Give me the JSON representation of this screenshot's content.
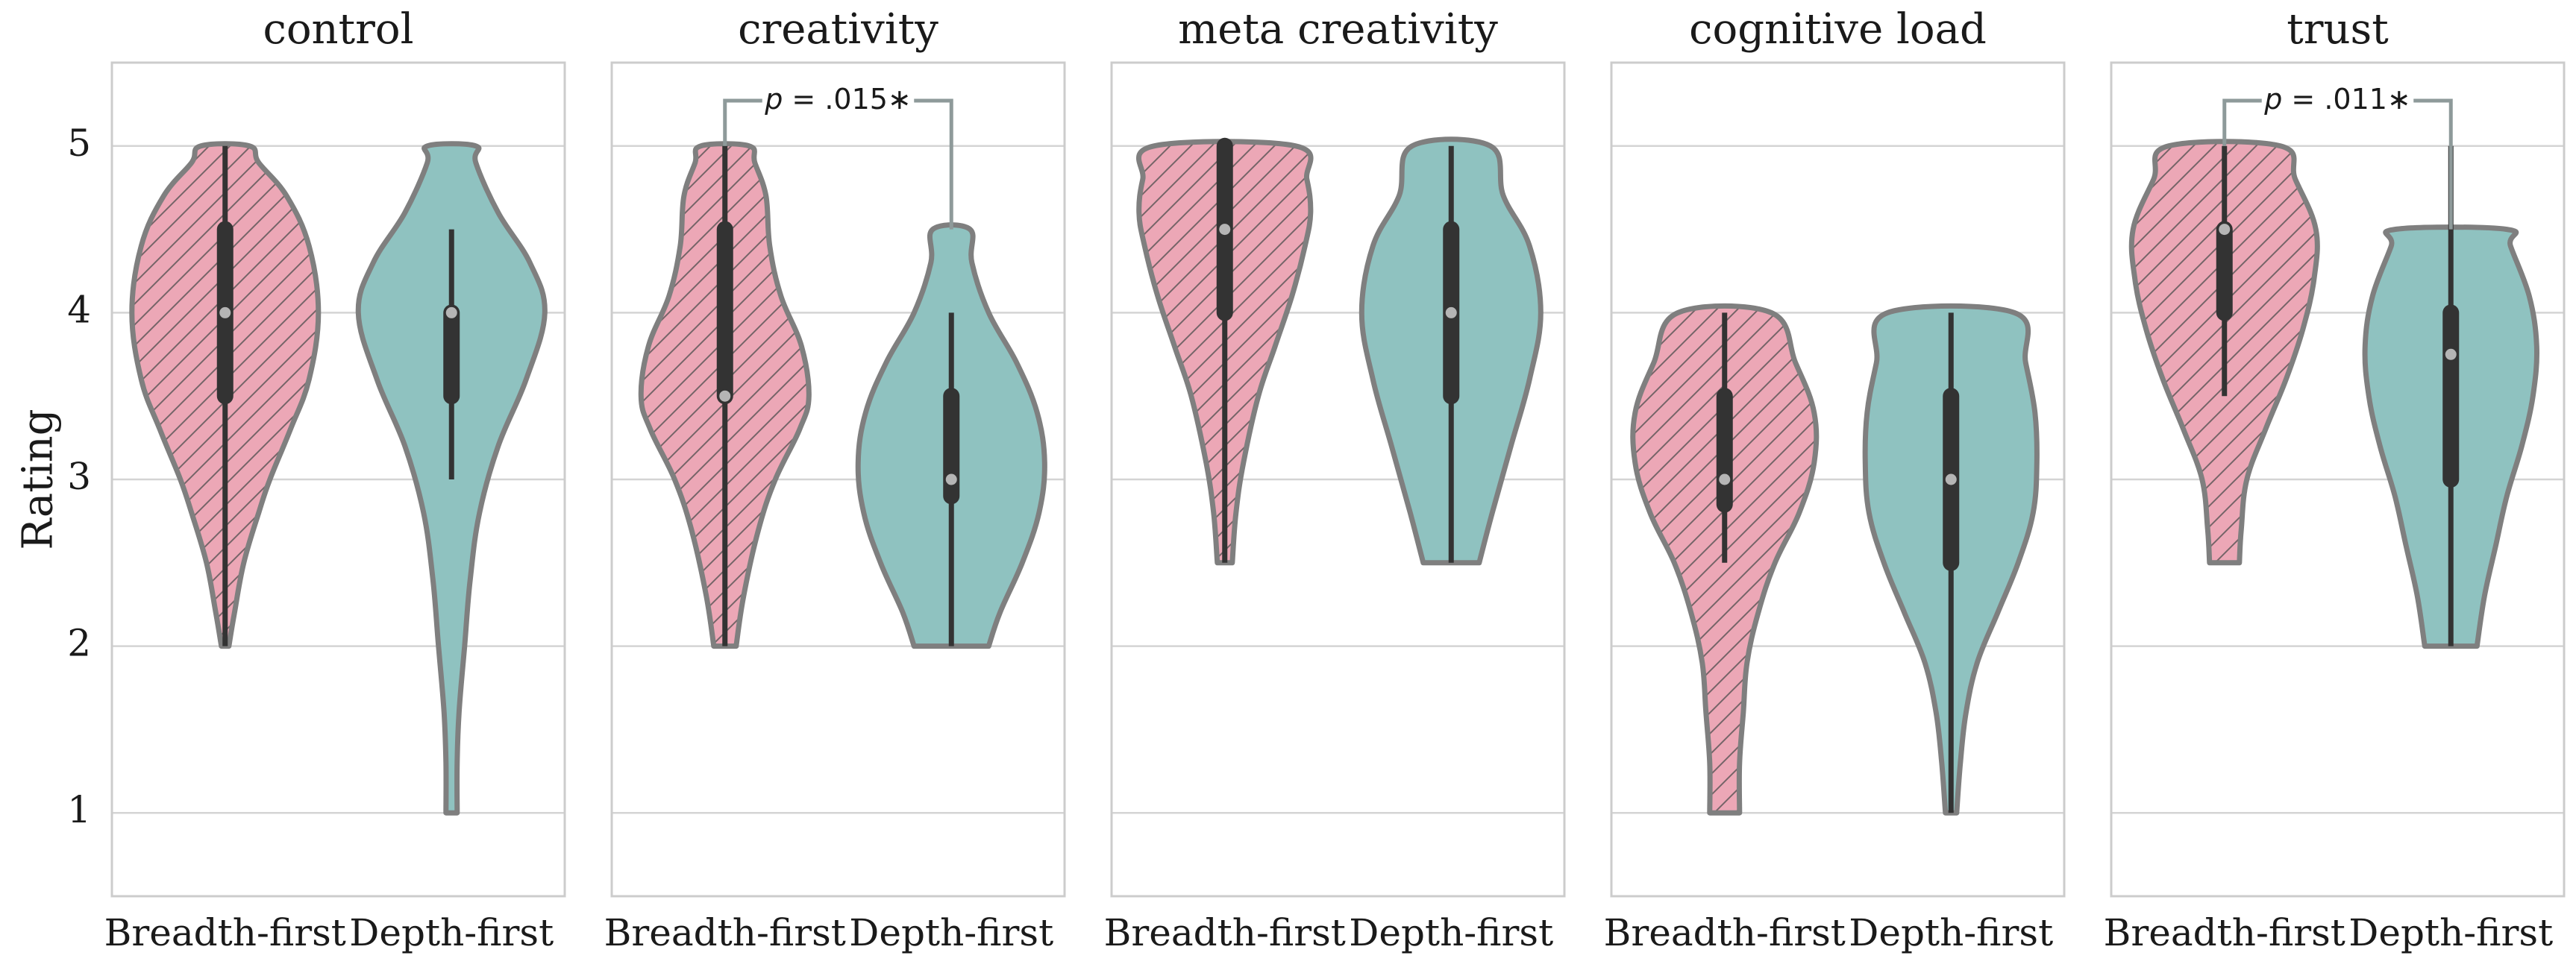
{
  "chart_data": {
    "type": "violin",
    "ylabel": "Rating",
    "ylim": [
      0.5,
      5.5
    ],
    "yticks": [
      "1",
      "2",
      "3",
      "4",
      "5"
    ],
    "grid": true,
    "colors": {
      "breadth": "#eca7b6",
      "depth": "#8fc2c0",
      "outline": "#7f7f7f",
      "box": "#333333",
      "median": "#b5b5b5",
      "bracket": "#8e9a9a"
    },
    "panels": [
      {
        "title": "control",
        "categories": [
          "Breadth-first",
          "Depth-first"
        ],
        "groups": [
          {
            "group": "Breadth-first",
            "hatched": true,
            "min": 2,
            "max": 5,
            "q1": 3.5,
            "median": 4,
            "q3": 4.5,
            "density": [
              [
                2.0,
                0.02
              ],
              [
                2.2,
                0.05
              ],
              [
                2.5,
                0.1
              ],
              [
                2.8,
                0.18
              ],
              [
                3.0,
                0.24
              ],
              [
                3.3,
                0.35
              ],
              [
                3.6,
                0.45
              ],
              [
                4.0,
                0.5
              ],
              [
                4.4,
                0.45
              ],
              [
                4.7,
                0.33
              ],
              [
                4.9,
                0.18
              ],
              [
                5.0,
                0.13
              ]
            ]
          },
          {
            "group": "Depth-first",
            "hatched": false,
            "min": 3,
            "max": 4.5,
            "q1": 3.5,
            "median": 4,
            "q3": 4,
            "density": [
              [
                1.0,
                0.03
              ],
              [
                1.3,
                0.03
              ],
              [
                1.6,
                0.04
              ],
              [
                2.0,
                0.07
              ],
              [
                2.4,
                0.1
              ],
              [
                2.8,
                0.15
              ],
              [
                3.2,
                0.25
              ],
              [
                3.6,
                0.4
              ],
              [
                4.0,
                0.5
              ],
              [
                4.3,
                0.42
              ],
              [
                4.6,
                0.25
              ],
              [
                4.9,
                0.13
              ],
              [
                5.0,
                0.13
              ]
            ]
          }
        ]
      },
      {
        "title": "creativity",
        "categories": [
          "Breadth-first",
          "Depth-first"
        ],
        "annotation": {
          "text_p": "p",
          "text_rest": " = .015∗"
        },
        "groups": [
          {
            "group": "Breadth-first",
            "hatched": true,
            "min": 2,
            "max": 5,
            "q1": 3.5,
            "median": 3.5,
            "q3": 4.5,
            "density": [
              [
                2.0,
                0.06
              ],
              [
                2.3,
                0.1
              ],
              [
                2.7,
                0.18
              ],
              [
                3.0,
                0.27
              ],
              [
                3.3,
                0.4
              ],
              [
                3.5,
                0.45
              ],
              [
                3.8,
                0.41
              ],
              [
                4.1,
                0.3
              ],
              [
                4.4,
                0.24
              ],
              [
                4.7,
                0.22
              ],
              [
                4.9,
                0.16
              ],
              [
                5.0,
                0.13
              ]
            ]
          },
          {
            "group": "Depth-first",
            "hatched": false,
            "min": 2,
            "max": 4,
            "q1": 2.9,
            "median": 3,
            "q3": 3.5,
            "density": [
              [
                2.0,
                0.2
              ],
              [
                2.2,
                0.26
              ],
              [
                2.5,
                0.38
              ],
              [
                2.8,
                0.47
              ],
              [
                3.1,
                0.5
              ],
              [
                3.4,
                0.46
              ],
              [
                3.7,
                0.35
              ],
              [
                4.0,
                0.2
              ],
              [
                4.3,
                0.11
              ],
              [
                4.5,
                0.1
              ]
            ]
          }
        ]
      },
      {
        "title": "meta creativity",
        "categories": [
          "Breadth-first",
          "Depth-first"
        ],
        "groups": [
          {
            "group": "Breadth-first",
            "hatched": true,
            "min": 2.5,
            "max": 5,
            "q1": 4,
            "median": 4.5,
            "q3": 5,
            "density": [
              [
                2.5,
                0.04
              ],
              [
                2.8,
                0.06
              ],
              [
                3.1,
                0.1
              ],
              [
                3.5,
                0.18
              ],
              [
                3.8,
                0.27
              ],
              [
                4.1,
                0.36
              ],
              [
                4.4,
                0.43
              ],
              [
                4.6,
                0.46
              ],
              [
                4.8,
                0.44
              ],
              [
                5.0,
                0.38
              ]
            ]
          },
          {
            "group": "Depth-first",
            "hatched": false,
            "min": 2.5,
            "max": 5,
            "q1": 3.5,
            "median": 4,
            "q3": 4.5,
            "density": [
              [
                2.5,
                0.15
              ],
              [
                2.8,
                0.22
              ],
              [
                3.2,
                0.32
              ],
              [
                3.6,
                0.42
              ],
              [
                4.0,
                0.48
              ],
              [
                4.4,
                0.42
              ],
              [
                4.7,
                0.28
              ],
              [
                5.0,
                0.21
              ]
            ]
          }
        ]
      },
      {
        "title": "cognitive load",
        "categories": [
          "Breadth-first",
          "Depth-first"
        ],
        "groups": [
          {
            "group": "Breadth-first",
            "hatched": true,
            "min": 2.5,
            "max": 4,
            "q1": 2.85,
            "median": 3,
            "q3": 3.5,
            "density": [
              [
                1.0,
                0.08
              ],
              [
                1.3,
                0.08
              ],
              [
                1.6,
                0.1
              ],
              [
                1.9,
                0.12
              ],
              [
                2.2,
                0.18
              ],
              [
                2.5,
                0.27
              ],
              [
                2.8,
                0.4
              ],
              [
                3.1,
                0.48
              ],
              [
                3.4,
                0.48
              ],
              [
                3.7,
                0.38
              ],
              [
                4.0,
                0.25
              ]
            ]
          },
          {
            "group": "Depth-first",
            "hatched": false,
            "min": 1,
            "max": 4,
            "q1": 2.5,
            "median": 3,
            "q3": 3.5,
            "density": [
              [
                1.0,
                0.03
              ],
              [
                1.3,
                0.05
              ],
              [
                1.6,
                0.08
              ],
              [
                1.9,
                0.14
              ],
              [
                2.2,
                0.25
              ],
              [
                2.5,
                0.36
              ],
              [
                2.8,
                0.44
              ],
              [
                3.1,
                0.46
              ],
              [
                3.4,
                0.45
              ],
              [
                3.7,
                0.4
              ],
              [
                4.0,
                0.34
              ]
            ]
          }
        ]
      },
      {
        "title": "trust",
        "categories": [
          "Breadth-first",
          "Depth-first"
        ],
        "annotation": {
          "text_p": "p",
          "text_rest": " = .011∗"
        },
        "groups": [
          {
            "group": "Breadth-first",
            "hatched": true,
            "min": 3.5,
            "max": 5,
            "q1": 4,
            "median": 4.5,
            "q3": 4.5,
            "density": [
              [
                2.5,
                0.08
              ],
              [
                2.7,
                0.09
              ],
              [
                3.0,
                0.12
              ],
              [
                3.3,
                0.22
              ],
              [
                3.6,
                0.33
              ],
              [
                3.9,
                0.42
              ],
              [
                4.2,
                0.48
              ],
              [
                4.5,
                0.49
              ],
              [
                4.8,
                0.38
              ],
              [
                5.0,
                0.3
              ]
            ]
          },
          {
            "group": "Depth-first",
            "hatched": false,
            "min": 2,
            "max": 5,
            "q1": 3,
            "median": 3.75,
            "q3": 4,
            "density": [
              [
                2.0,
                0.14
              ],
              [
                2.3,
                0.18
              ],
              [
                2.6,
                0.24
              ],
              [
                2.9,
                0.3
              ],
              [
                3.2,
                0.38
              ],
              [
                3.5,
                0.44
              ],
              [
                3.8,
                0.46
              ],
              [
                4.1,
                0.42
              ],
              [
                4.4,
                0.32
              ],
              [
                4.5,
                0.3
              ]
            ]
          }
        ]
      }
    ]
  }
}
